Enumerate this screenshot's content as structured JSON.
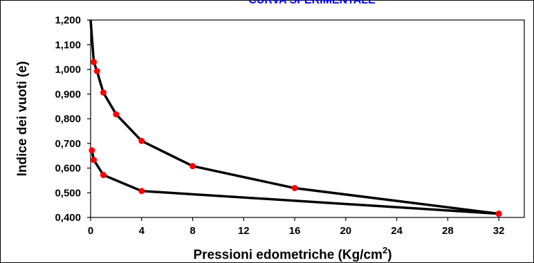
{
  "chart_data": {
    "type": "line",
    "title": "CURVA SPERIMENTALE",
    "xlabel": "Pressioni edometriche (Kg/cm",
    "xlabel_sup": "2",
    "xlabel_suffix": ")",
    "ylabel": "Indice dei vuoti (e)",
    "xlim": [
      0,
      34
    ],
    "ylim": [
      0.4,
      1.2
    ],
    "x_ticks": [
      0,
      4,
      8,
      12,
      16,
      20,
      24,
      28,
      32
    ],
    "x_tick_labels": [
      "0",
      "4",
      "8",
      "12",
      "16",
      "20",
      "24",
      "28",
      "32"
    ],
    "y_ticks": [
      0.4,
      0.5,
      0.6,
      0.7,
      0.8,
      0.9,
      1.0,
      1.1,
      1.2
    ],
    "y_tick_labels": [
      "0,400",
      "0,500",
      "0,600",
      "0,700",
      "0,800",
      "0,900",
      "1,000",
      "1,100",
      "1,200"
    ],
    "grid": false,
    "series": [
      {
        "x": [
          0,
          0.25,
          0.5,
          1,
          2,
          4,
          8,
          16,
          32
        ],
        "y": [
          1.2,
          1.03,
          0.993,
          0.906,
          0.818,
          0.71,
          0.608,
          0.519,
          0.415
        ],
        "markers": [
          false,
          true,
          true,
          true,
          true,
          true,
          true,
          true,
          true
        ]
      },
      {
        "x": [
          32,
          4,
          1,
          0.25,
          0.1
        ],
        "y": [
          0.415,
          0.507,
          0.572,
          0.633,
          0.672
        ],
        "markers": [
          true,
          true,
          true,
          true,
          true
        ]
      }
    ],
    "colors": {
      "line": "#000000",
      "marker": "#ff0000",
      "title": "#0000ff"
    }
  }
}
